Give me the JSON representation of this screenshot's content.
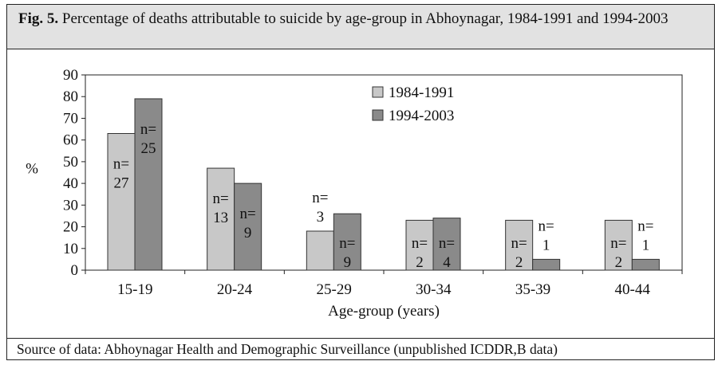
{
  "figure": {
    "label": "Fig. 5.",
    "title": "Percentage of deaths attributable to suicide by age-group in Abhoynagar, 1984-1991 and 1994-2003",
    "source": "Source of data: Abhoynagar Health and Demographic Surveillance (unpublished ICDDR,B data)"
  },
  "chart_data": {
    "type": "bar",
    "categories": [
      "15-19",
      "20-24",
      "25-29",
      "30-34",
      "35-39",
      "40-44"
    ],
    "series": [
      {
        "name": "1984-1991",
        "values": [
          63,
          47,
          18,
          23,
          23,
          23
        ],
        "n_labels": [
          "27",
          "13",
          "3",
          "2",
          "2",
          "2"
        ]
      },
      {
        "name": "1994-2003",
        "values": [
          79,
          40,
          26,
          24,
          5,
          5
        ],
        "n_labels": [
          "25",
          "9",
          "9",
          "4",
          "1",
          "1"
        ]
      }
    ],
    "n_prefix": "n=",
    "xlabel": "Age-group (years)",
    "ylabel": "%",
    "ylim": [
      0,
      90
    ],
    "yticks": [
      "0",
      "10",
      "20",
      "30",
      "40",
      "50",
      "60",
      "70",
      "80",
      "90"
    ],
    "grid": false,
    "legend_position": "top-right",
    "colors": {
      "1984-1991": "#c8c8c8",
      "1994-2003": "#8a8a8a"
    }
  }
}
